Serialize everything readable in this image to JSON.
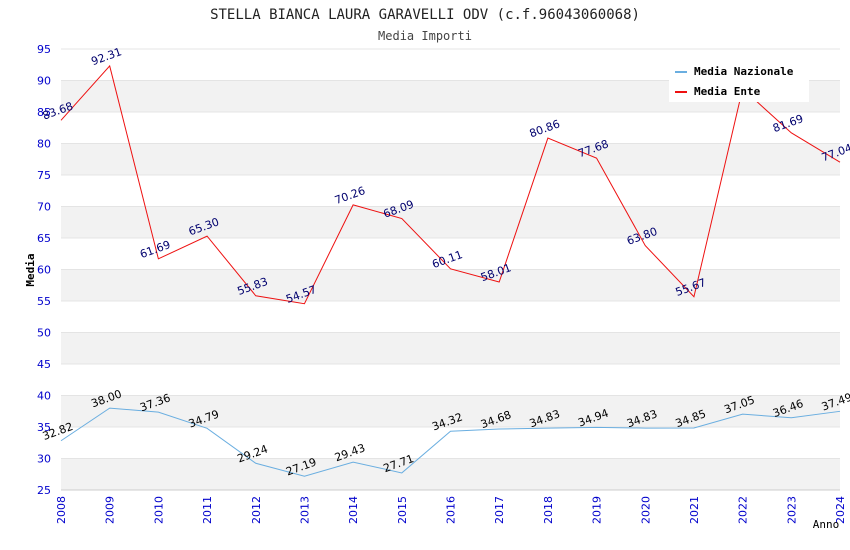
{
  "chart_data": {
    "type": "line",
    "title": "STELLA BIANCA LAURA GARAVELLI ODV (c.f.96043060068)",
    "subtitle": "Media Importi",
    "xlabel": "Anno",
    "ylabel": "Media",
    "ylim": [
      25,
      95
    ],
    "ytick_step": 5,
    "grid": true,
    "legend_position": "top-right",
    "x": [
      "2008",
      "2009",
      "2010",
      "2011",
      "2012",
      "2013",
      "2014",
      "2015",
      "2016",
      "2017",
      "2018",
      "2019",
      "2020",
      "2021",
      "2022",
      "2023",
      "2024"
    ],
    "series": [
      {
        "name": "Media Nazionale",
        "color": "#6aaee0",
        "label_color": "#000000",
        "values": [
          32.82,
          38.0,
          37.36,
          34.79,
          29.24,
          27.19,
          29.43,
          27.71,
          34.32,
          34.68,
          34.83,
          34.94,
          34.83,
          34.85,
          37.05,
          36.46,
          37.49
        ],
        "labels": [
          "32.82",
          "38.00",
          "37.36",
          "34.79",
          "29.24",
          "27.19",
          "29.43",
          "27.71",
          "34.32",
          "34.68",
          "34.83",
          "34.94",
          "34.83",
          "34.85",
          "37.05",
          "36.46",
          "37.49"
        ]
      },
      {
        "name": "Media Ente",
        "color": "#ee1111",
        "label_color": "#00006e",
        "values": [
          83.68,
          92.31,
          61.69,
          65.3,
          55.83,
          54.57,
          70.26,
          68.09,
          60.11,
          58.01,
          80.86,
          77.68,
          63.8,
          55.67,
          88.7,
          81.69,
          77.04
        ],
        "labels": [
          "83.68",
          "92.31",
          "61.69",
          "65.30",
          "55.83",
          "54.57",
          "70.26",
          "68.09",
          "60.11",
          "58.01",
          "80.86",
          "77.68",
          "63.80",
          "55.67",
          "",
          "81.69",
          "77.04"
        ]
      }
    ]
  },
  "colors": {
    "band": "#f2f2f2",
    "axis_text": "#0000cc",
    "title_text": "#222222",
    "subtitle_text": "#444444"
  }
}
